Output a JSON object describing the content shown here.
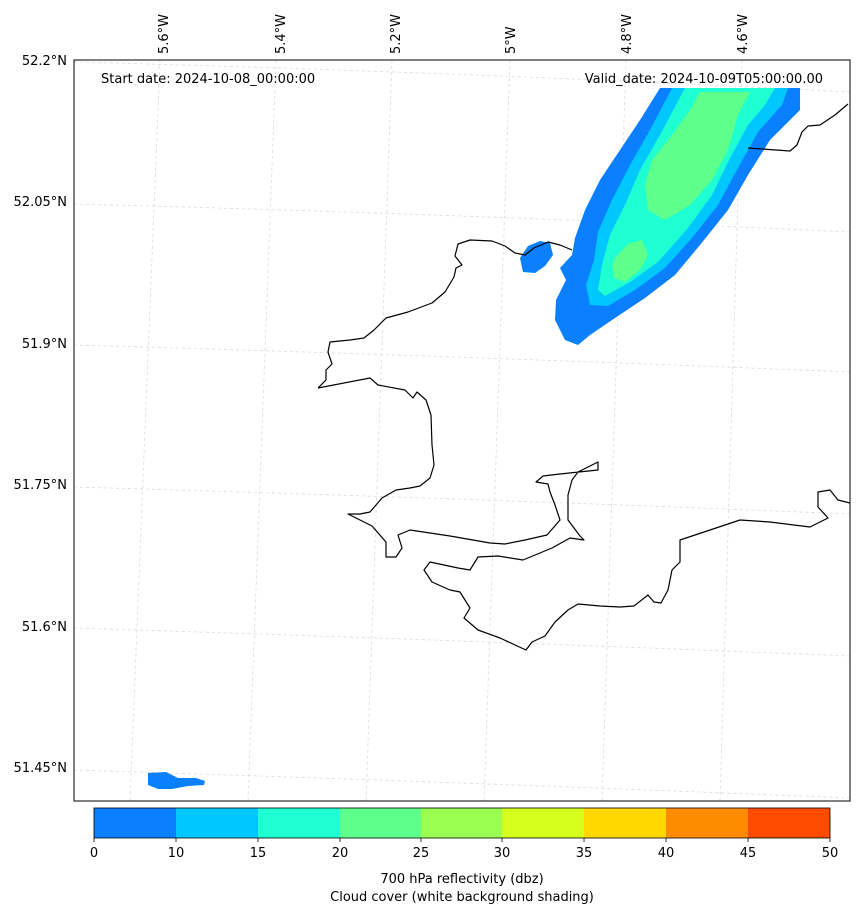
{
  "annotations": {
    "start_date": "Start date: 2024-10-08_00:00:00",
    "valid_date": "Valid_date: 2024-10-09T05:00:00.00"
  },
  "axes": {
    "lon_ticks": [
      "5.6°W",
      "5.4°W",
      "5.2°W",
      "5°W",
      "4.8°W",
      "4.6°W"
    ],
    "lat_ticks": [
      "52.2°N",
      "52.05°N",
      "51.9°N",
      "51.75°N",
      "51.6°N",
      "51.45°N"
    ]
  },
  "colorbar": {
    "ticks": [
      "0",
      "10",
      "15",
      "20",
      "25",
      "30",
      "35",
      "40",
      "45",
      "50"
    ],
    "colors": [
      "#0a80ff",
      "#00c8ff",
      "#1effd2",
      "#5eff8a",
      "#9bff52",
      "#d6ff1e",
      "#ffd800",
      "#ff8c00",
      "#ff4c00"
    ],
    "label_line1": "700 hPa reflectivity (dbz)",
    "label_line2": "Cloud cover (white background shading)"
  },
  "field_colors": {
    "level_10": "#0a80ff",
    "level_15": "#00c8ff",
    "level_20": "#1effd2",
    "level_25": "#5eff8a"
  }
}
